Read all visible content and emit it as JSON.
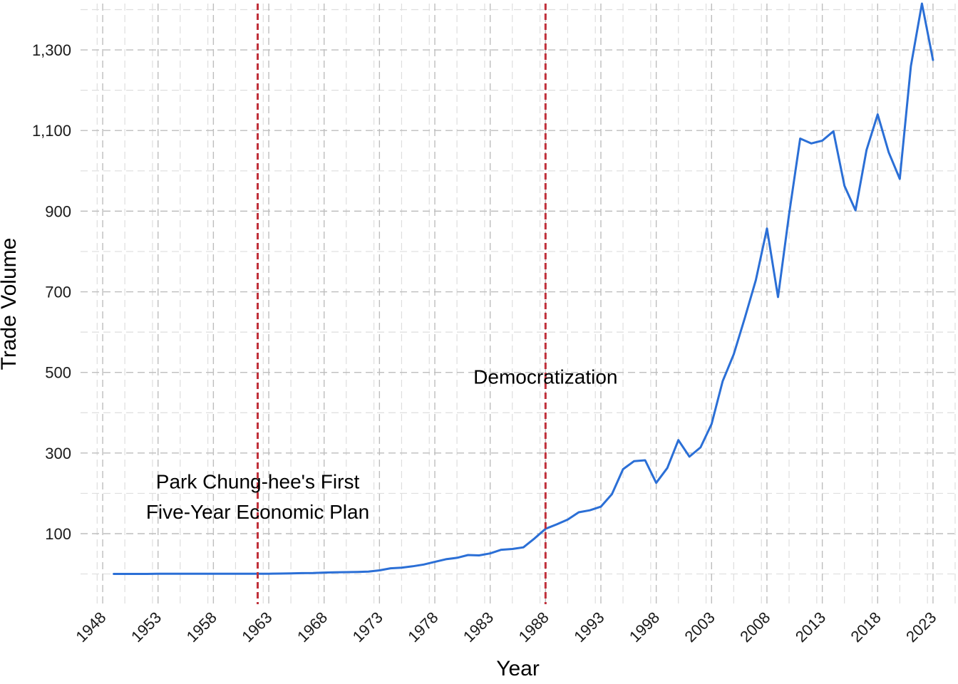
{
  "chart_data": {
    "type": "line",
    "xlabel": "Year",
    "ylabel": "Trade Volume",
    "xlim": [
      1946,
      2025
    ],
    "ylim": [
      -75,
      1415
    ],
    "x_ticks": [
      1948,
      1953,
      1958,
      1963,
      1968,
      1973,
      1978,
      1983,
      1988,
      1993,
      1998,
      2003,
      2008,
      2013,
      2018,
      2023
    ],
    "x_tick_labels": [
      "1948",
      "1953",
      "1958",
      "1963",
      "1968",
      "1973",
      "1978",
      "1983",
      "1988",
      "1993",
      "1998",
      "2003",
      "2008",
      "2013",
      "2018",
      "2023"
    ],
    "y_ticks": [
      100,
      300,
      500,
      700,
      900,
      1100,
      1300
    ],
    "y_tick_labels": [
      "100",
      "300",
      "500",
      "700",
      "900",
      "1,100",
      "1,300"
    ],
    "grid": true,
    "grid_style": "dashed",
    "colors": {
      "line": "#2b6fd6",
      "vline": "#c0303a",
      "grid_major": "#bdbdbd",
      "grid_minor": "#dedede"
    },
    "series": [
      {
        "x": [
          1949,
          1950,
          1951,
          1952,
          1953,
          1954,
          1955,
          1956,
          1957,
          1958,
          1959,
          1960,
          1961,
          1962,
          1963,
          1964,
          1965,
          1966,
          1967,
          1968,
          1969,
          1970,
          1971,
          1972,
          1973,
          1974,
          1975,
          1976,
          1977,
          1978,
          1979,
          1980,
          1981,
          1982,
          1983,
          1984,
          1985,
          1986,
          1987,
          1988,
          1989,
          1990,
          1991,
          1992,
          1993,
          1994,
          1995,
          1996,
          1997,
          1998,
          1999,
          2000,
          2001,
          2002,
          2003,
          2004,
          2005,
          2006,
          2007,
          2008,
          2009,
          2010,
          2011,
          2012,
          2013,
          2014,
          2015,
          2016,
          2017,
          2018,
          2019,
          2020,
          2021,
          2022,
          2023
        ],
        "values": [
          0.2,
          0.2,
          0.2,
          0.2,
          0.4,
          0.4,
          0.4,
          0.5,
          0.5,
          0.5,
          0.4,
          0.5,
          0.5,
          0.7,
          0.7,
          1.0,
          1.5,
          2.0,
          2.5,
          3.5,
          4.0,
          4.5,
          5.0,
          6.0,
          9.0,
          14.0,
          15.5,
          19.0,
          23.5,
          30.0,
          36.5,
          40.0,
          47.0,
          46.0,
          51.0,
          60.0,
          62.0,
          66.0,
          88.0,
          112.0,
          123.0,
          135.0,
          153.0,
          158.0,
          167.0,
          198.0,
          260.0,
          280.0,
          282.0,
          226.0,
          263.0,
          332.0,
          291.0,
          314.0,
          372.0,
          478.0,
          545.0,
          635.0,
          729.0,
          857.0,
          687.0,
          892.0,
          1080.0,
          1068.0,
          1075.0,
          1098.0,
          963.0,
          902.0,
          1052.0,
          1140.0,
          1046.0,
          980.0,
          1260.0,
          1415.0,
          1275.0
        ]
      }
    ],
    "vlines": [
      {
        "x": 1962,
        "label_lines": [
          "Park Chung-hee's First",
          "Five-Year Economic Plan"
        ],
        "label_y": [
          230,
          155
        ]
      },
      {
        "x": 1988,
        "label_lines": [
          "Democratization"
        ],
        "label_y": [
          490
        ]
      }
    ]
  }
}
